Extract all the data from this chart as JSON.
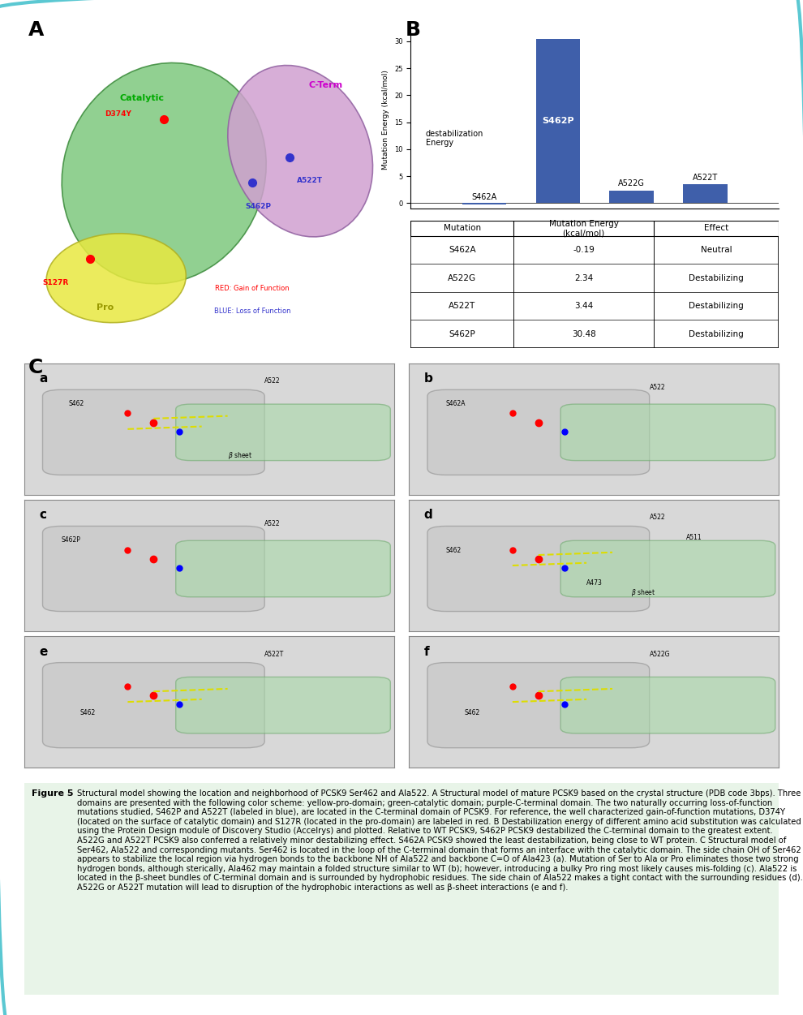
{
  "title": "biochem-molbio-location-neighborhood-PCSK9",
  "figure_label_A": "A",
  "figure_label_B": "B",
  "figure_label_C": "C",
  "bar_categories": [
    "S462A",
    "S462P",
    "A522G",
    "A522T"
  ],
  "bar_values": [
    -0.19,
    30.48,
    2.34,
    3.44
  ],
  "bar_color": "#3f5faa",
  "bar_ylabel": "Mutation Energy (kcal/mol)",
  "bar_text_label": "S462P",
  "bar_cat_labels_above": [
    "S462A",
    "A522G",
    "A522T"
  ],
  "destab_text": "destabilization\nEnergy",
  "ylim_bar": [
    -1,
    32
  ],
  "yticks_bar": [
    0,
    5,
    10,
    15,
    20,
    25,
    30
  ],
  "table_headers": [
    "Mutation",
    "Mutation Energy\n(kcal/mol)",
    "Effect"
  ],
  "table_data": [
    [
      "S462A",
      "-0.19",
      "Neutral"
    ],
    [
      "A522G",
      "2.34",
      "Destabilizing"
    ],
    [
      "A522T",
      "3.44",
      "Destabilizing"
    ],
    [
      "S462P",
      "30.48",
      "Destabilizing"
    ]
  ],
  "panel_C_labels": [
    "a",
    "b",
    "c",
    "d",
    "e",
    "f"
  ],
  "outer_border_color": "#5bc8d2",
  "background_color": "#ffffff",
  "caption_label": "Figure 5",
  "caption_text": "Structural model showing the location and neighborhood of PCSK9 Ser462 and Ala522. A Structural model of mature PCSK9 based on the crystal structure (PDB code 3bps). Three domains are presented with the following color scheme: yellow-pro-domain; green-catalytic domain; purple-C-terminal domain. The two naturally occurring loss-of-function mutations studied, S462P and A522T (labeled in blue), are located in the C-terminal domain of PCSK9. For reference, the well characterized gain-of-function mutations, D374Y (located on the surface of catalytic domain) and S127R (located in the pro-domain) are labeled in red. B Destabilization energy of different amino acid substitution was calculated using the Protein Design module of Discovery Studio (Accelrys) and plotted. Relative to WT PCSK9, S462P PCSK9 destabilized the C-terminal domain to the greatest extent.  A522G and A522T PCSK9 also conferred a relatively minor destabilizing effect. S462A PCSK9 showed the least destabilization, being close to WT protein. C Structural model of Ser462, Ala522 and corresponding mutants. Ser462 is located in the loop of the C-terminal domain that forms an interface with the catalytic domain. The side chain OH of Ser462 appears to stabilize the local region via hydrogen bonds to the backbone NH of Ala522 and backbone C=O of Ala423 (a). Mutation of Ser to Ala or Pro eliminates those two strong hydrogen bonds, although sterically, Ala462 may maintain a folded structure similar to WT (b); however, introducing a bulky Pro ring most likely causes mis-folding (c). Ala522 is located in the β-sheet bundles of C-terminal domain and is surrounded by hydrophobic residues. The side chain of Ala522 makes a tight contact with the surrounding residues (d). A522G or A522T mutation will lead to disruption of the hydrophobic interactions as well as β-sheet interactions (e and f)."
}
